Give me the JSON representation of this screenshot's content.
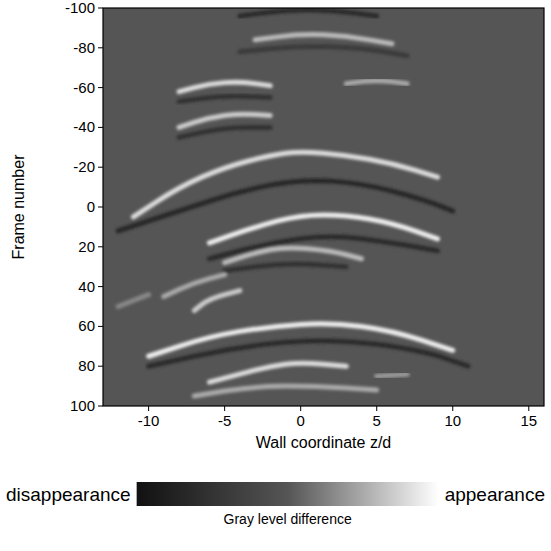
{
  "chart_data": {
    "type": "streak",
    "xlabel": "Wall coordinate z/d",
    "ylabel": "Frame number",
    "xlim": [
      -13,
      16
    ],
    "xticks": [
      -10,
      -5,
      0,
      5,
      10,
      15
    ],
    "ylim": [
      100,
      -100
    ],
    "yticks": [
      -100,
      -80,
      -60,
      -40,
      -20,
      0,
      20,
      40,
      60,
      80,
      100
    ],
    "colorbar": {
      "title": "Gray level difference",
      "low_label": "disappearance",
      "high_label": "appearance",
      "range": [
        -1,
        1
      ]
    },
    "streaks": [
      {
        "z": [
          -4,
          -1,
          2,
          5
        ],
        "frame": [
          -96,
          -99,
          -99,
          -96
        ],
        "value": -0.6
      },
      {
        "z": [
          -3,
          0,
          3,
          6
        ],
        "frame": [
          -84,
          -87,
          -86,
          -82
        ],
        "value": 0.6
      },
      {
        "z": [
          -4,
          0,
          4,
          7
        ],
        "frame": [
          -78,
          -81,
          -80,
          -76
        ],
        "value": -0.4
      },
      {
        "z": [
          -8,
          -6,
          -4,
          -2
        ],
        "frame": [
          -58,
          -62,
          -63,
          -61
        ],
        "value": 0.8
      },
      {
        "z": [
          3,
          5,
          7
        ],
        "frame": [
          -62,
          -64,
          -62
        ],
        "value": 0.5
      },
      {
        "z": [
          -8,
          -5,
          -2
        ],
        "frame": [
          -53,
          -56,
          -55
        ],
        "value": -0.5
      },
      {
        "z": [
          -8,
          -6,
          -4,
          -2
        ],
        "frame": [
          -40,
          -45,
          -47,
          -46
        ],
        "value": 0.7
      },
      {
        "z": [
          -8,
          -5,
          -2
        ],
        "frame": [
          -35,
          -40,
          -40
        ],
        "value": -0.5
      },
      {
        "z": [
          -11,
          -8,
          -5,
          -2,
          0,
          3,
          6,
          9
        ],
        "frame": [
          5,
          -10,
          -20,
          -26,
          -28,
          -26,
          -22,
          -15
        ],
        "value": 0.8
      },
      {
        "z": [
          -12,
          -8,
          -4,
          0,
          4,
          8,
          10
        ],
        "frame": [
          12,
          2,
          -8,
          -14,
          -12,
          -4,
          2
        ],
        "value": -0.7
      },
      {
        "z": [
          -6,
          -3,
          0,
          3,
          6,
          9
        ],
        "frame": [
          18,
          10,
          4,
          4,
          8,
          16
        ],
        "value": 0.9
      },
      {
        "z": [
          -6,
          -2,
          2,
          6,
          9
        ],
        "frame": [
          26,
          18,
          14,
          18,
          22
        ],
        "value": -0.6
      },
      {
        "z": [
          -5,
          -3,
          -1,
          2,
          4
        ],
        "frame": [
          28,
          23,
          20,
          22,
          26
        ],
        "value": 0.6
      },
      {
        "z": [
          -5,
          -1,
          3
        ],
        "frame": [
          32,
          28,
          30
        ],
        "value": -0.5
      },
      {
        "z": [
          -9,
          -7,
          -5
        ],
        "frame": [
          45,
          38,
          34
        ],
        "value": 0.5
      },
      {
        "z": [
          -7,
          -6,
          -4
        ],
        "frame": [
          52,
          46,
          42
        ],
        "value": 0.7
      },
      {
        "z": [
          -12,
          -10
        ],
        "frame": [
          50,
          44
        ],
        "value": 0.3
      },
      {
        "z": [
          -10,
          -6,
          -2,
          2,
          6,
          10
        ],
        "frame": [
          75,
          65,
          60,
          58,
          62,
          72
        ],
        "value": 0.9
      },
      {
        "z": [
          -10,
          -4,
          2,
          8,
          11
        ],
        "frame": [
          80,
          70,
          66,
          72,
          80
        ],
        "value": -0.6
      },
      {
        "z": [
          -6,
          -4,
          -2,
          0,
          3
        ],
        "frame": [
          88,
          84,
          80,
          78,
          80
        ],
        "value": 0.8
      },
      {
        "z": [
          -7,
          -3,
          1,
          5
        ],
        "frame": [
          95,
          90,
          90,
          92
        ],
        "value": 0.5
      },
      {
        "z": [
          5,
          7
        ],
        "frame": [
          85,
          84
        ],
        "value": 0.4
      }
    ]
  }
}
